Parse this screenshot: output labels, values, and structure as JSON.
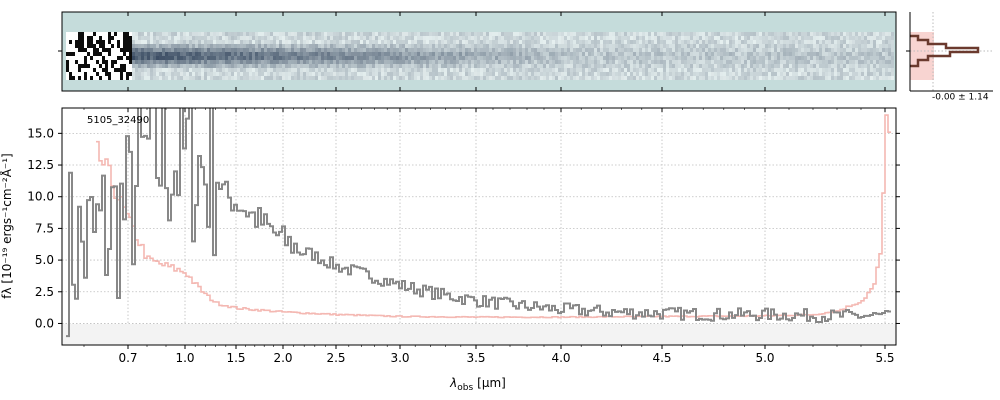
{
  "chart_data": [
    {
      "type": "heatmap",
      "name": "2d-spectrum",
      "colors": {
        "background": "#c5dcdb",
        "trace": "#2a3c55"
      }
    },
    {
      "type": "line",
      "name": "cross-dispersion-profile",
      "annotation": "-0.00 ± 1.14",
      "colors": {
        "profile": "#6b3a2e",
        "model": "#f4b8b2"
      }
    },
    {
      "type": "line",
      "name": "1d-spectrum",
      "label": "5105_32490",
      "xlabel": "λobs [μm]",
      "xlabel_main": "λ",
      "xlabel_sub": "obs",
      "xlabel_unit": "[μm]",
      "ylabel": "fλ [10⁻¹⁹ ergs⁻¹cm⁻²Å⁻¹]",
      "x_axis_scale": "nonlinear (linear in spectral pixel)",
      "xticks": [
        "0.7",
        "1.0",
        "1.5",
        "2.0",
        "2.5",
        "3.0",
        "3.5",
        "4.0",
        "4.5",
        "5.0",
        "5.5"
      ],
      "ytick_labels": [
        "0.0",
        "2.5",
        "5.0",
        "7.5",
        "10.0",
        "12.5",
        "15.0"
      ],
      "ylim": [
        -1.7,
        17
      ],
      "xlim": [
        0.55,
        5.52
      ],
      "grid": true,
      "series": [
        {
          "role": "flux",
          "color": "#888888",
          "x": [
            0.6,
            0.7,
            0.8,
            0.9,
            1.0,
            1.1,
            1.2,
            1.3,
            1.4,
            1.5,
            1.75,
            2.0,
            2.25,
            2.5,
            2.75,
            3.0,
            3.25,
            3.5,
            3.75,
            4.0,
            4.25,
            4.5,
            4.75,
            5.0,
            5.25,
            5.45
          ],
          "y": [
            6.0,
            9.0,
            13.5,
            13.0,
            13.0,
            12.5,
            12.0,
            11.5,
            10.0,
            9.5,
            8.0,
            6.5,
            5.5,
            4.5,
            3.8,
            3.0,
            2.3,
            1.8,
            1.4,
            1.1,
            0.9,
            0.8,
            0.7,
            0.7,
            0.6,
            0.6
          ]
        },
        {
          "role": "uncertainty",
          "color": "#f4b8b2",
          "x": [
            0.6,
            0.65,
            0.7,
            0.75,
            0.8,
            0.9,
            1.0,
            1.1,
            1.2,
            1.3,
            1.5,
            2.0,
            2.5,
            3.0,
            3.5,
            4.0,
            4.5,
            5.0,
            5.2,
            5.3,
            5.4,
            5.45,
            5.48,
            5.5
          ],
          "y": [
            15.0,
            12.0,
            8.0,
            6.5,
            5.0,
            4.5,
            4.0,
            3.0,
            2.2,
            1.6,
            1.2,
            0.9,
            0.7,
            0.55,
            0.5,
            0.5,
            0.55,
            0.6,
            0.7,
            1.0,
            1.8,
            3.0,
            6.0,
            16.0
          ]
        }
      ]
    }
  ]
}
